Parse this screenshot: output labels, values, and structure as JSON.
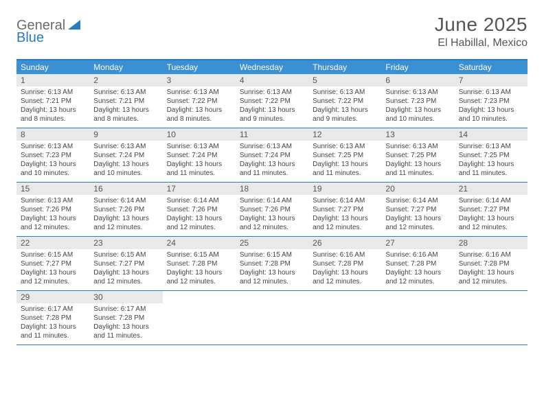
{
  "logo": {
    "part1": "General",
    "part2": "Blue"
  },
  "title": "June 2025",
  "location": "El Habillal, Mexico",
  "colors": {
    "header_bg": "#3b8fd3",
    "border": "#2a7bbf",
    "daynum_bg": "#e9e9e9",
    "text": "#555555",
    "body_text": "#444444"
  },
  "dow": [
    "Sunday",
    "Monday",
    "Tuesday",
    "Wednesday",
    "Thursday",
    "Friday",
    "Saturday"
  ],
  "weeks": [
    [
      {
        "n": "1",
        "sr": "Sunrise: 6:13 AM",
        "ss": "Sunset: 7:21 PM",
        "dl": "Daylight: 13 hours and 8 minutes."
      },
      {
        "n": "2",
        "sr": "Sunrise: 6:13 AM",
        "ss": "Sunset: 7:21 PM",
        "dl": "Daylight: 13 hours and 8 minutes."
      },
      {
        "n": "3",
        "sr": "Sunrise: 6:13 AM",
        "ss": "Sunset: 7:22 PM",
        "dl": "Daylight: 13 hours and 8 minutes."
      },
      {
        "n": "4",
        "sr": "Sunrise: 6:13 AM",
        "ss": "Sunset: 7:22 PM",
        "dl": "Daylight: 13 hours and 9 minutes."
      },
      {
        "n": "5",
        "sr": "Sunrise: 6:13 AM",
        "ss": "Sunset: 7:22 PM",
        "dl": "Daylight: 13 hours and 9 minutes."
      },
      {
        "n": "6",
        "sr": "Sunrise: 6:13 AM",
        "ss": "Sunset: 7:23 PM",
        "dl": "Daylight: 13 hours and 10 minutes."
      },
      {
        "n": "7",
        "sr": "Sunrise: 6:13 AM",
        "ss": "Sunset: 7:23 PM",
        "dl": "Daylight: 13 hours and 10 minutes."
      }
    ],
    [
      {
        "n": "8",
        "sr": "Sunrise: 6:13 AM",
        "ss": "Sunset: 7:23 PM",
        "dl": "Daylight: 13 hours and 10 minutes."
      },
      {
        "n": "9",
        "sr": "Sunrise: 6:13 AM",
        "ss": "Sunset: 7:24 PM",
        "dl": "Daylight: 13 hours and 10 minutes."
      },
      {
        "n": "10",
        "sr": "Sunrise: 6:13 AM",
        "ss": "Sunset: 7:24 PM",
        "dl": "Daylight: 13 hours and 11 minutes."
      },
      {
        "n": "11",
        "sr": "Sunrise: 6:13 AM",
        "ss": "Sunset: 7:24 PM",
        "dl": "Daylight: 13 hours and 11 minutes."
      },
      {
        "n": "12",
        "sr": "Sunrise: 6:13 AM",
        "ss": "Sunset: 7:25 PM",
        "dl": "Daylight: 13 hours and 11 minutes."
      },
      {
        "n": "13",
        "sr": "Sunrise: 6:13 AM",
        "ss": "Sunset: 7:25 PM",
        "dl": "Daylight: 13 hours and 11 minutes."
      },
      {
        "n": "14",
        "sr": "Sunrise: 6:13 AM",
        "ss": "Sunset: 7:25 PM",
        "dl": "Daylight: 13 hours and 11 minutes."
      }
    ],
    [
      {
        "n": "15",
        "sr": "Sunrise: 6:13 AM",
        "ss": "Sunset: 7:26 PM",
        "dl": "Daylight: 13 hours and 12 minutes."
      },
      {
        "n": "16",
        "sr": "Sunrise: 6:14 AM",
        "ss": "Sunset: 7:26 PM",
        "dl": "Daylight: 13 hours and 12 minutes."
      },
      {
        "n": "17",
        "sr": "Sunrise: 6:14 AM",
        "ss": "Sunset: 7:26 PM",
        "dl": "Daylight: 13 hours and 12 minutes."
      },
      {
        "n": "18",
        "sr": "Sunrise: 6:14 AM",
        "ss": "Sunset: 7:26 PM",
        "dl": "Daylight: 13 hours and 12 minutes."
      },
      {
        "n": "19",
        "sr": "Sunrise: 6:14 AM",
        "ss": "Sunset: 7:27 PM",
        "dl": "Daylight: 13 hours and 12 minutes."
      },
      {
        "n": "20",
        "sr": "Sunrise: 6:14 AM",
        "ss": "Sunset: 7:27 PM",
        "dl": "Daylight: 13 hours and 12 minutes."
      },
      {
        "n": "21",
        "sr": "Sunrise: 6:14 AM",
        "ss": "Sunset: 7:27 PM",
        "dl": "Daylight: 13 hours and 12 minutes."
      }
    ],
    [
      {
        "n": "22",
        "sr": "Sunrise: 6:15 AM",
        "ss": "Sunset: 7:27 PM",
        "dl": "Daylight: 13 hours and 12 minutes."
      },
      {
        "n": "23",
        "sr": "Sunrise: 6:15 AM",
        "ss": "Sunset: 7:27 PM",
        "dl": "Daylight: 13 hours and 12 minutes."
      },
      {
        "n": "24",
        "sr": "Sunrise: 6:15 AM",
        "ss": "Sunset: 7:28 PM",
        "dl": "Daylight: 13 hours and 12 minutes."
      },
      {
        "n": "25",
        "sr": "Sunrise: 6:15 AM",
        "ss": "Sunset: 7:28 PM",
        "dl": "Daylight: 13 hours and 12 minutes."
      },
      {
        "n": "26",
        "sr": "Sunrise: 6:16 AM",
        "ss": "Sunset: 7:28 PM",
        "dl": "Daylight: 13 hours and 12 minutes."
      },
      {
        "n": "27",
        "sr": "Sunrise: 6:16 AM",
        "ss": "Sunset: 7:28 PM",
        "dl": "Daylight: 13 hours and 12 minutes."
      },
      {
        "n": "28",
        "sr": "Sunrise: 6:16 AM",
        "ss": "Sunset: 7:28 PM",
        "dl": "Daylight: 13 hours and 12 minutes."
      }
    ],
    [
      {
        "n": "29",
        "sr": "Sunrise: 6:17 AM",
        "ss": "Sunset: 7:28 PM",
        "dl": "Daylight: 13 hours and 11 minutes."
      },
      {
        "n": "30",
        "sr": "Sunrise: 6:17 AM",
        "ss": "Sunset: 7:28 PM",
        "dl": "Daylight: 13 hours and 11 minutes."
      },
      {
        "empty": true
      },
      {
        "empty": true
      },
      {
        "empty": true
      },
      {
        "empty": true
      },
      {
        "empty": true
      }
    ]
  ]
}
